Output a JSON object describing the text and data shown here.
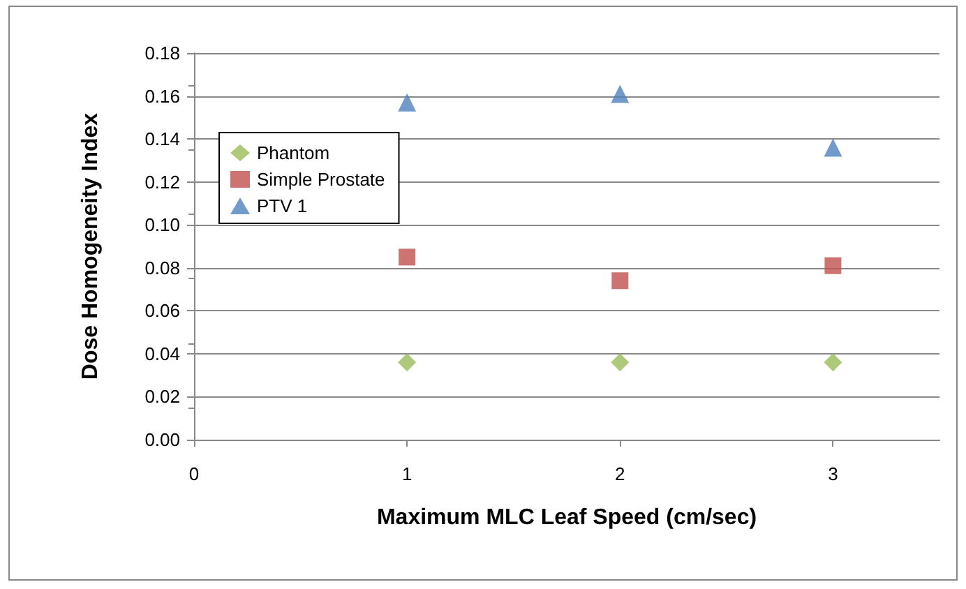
{
  "chart_data": {
    "type": "scatter",
    "xlabel": "Maximum MLC Leaf Speed (cm/sec)",
    "ylabel": "Dose Homogeneity Index",
    "x": [
      1,
      2,
      3
    ],
    "series": [
      {
        "name": "Phantom",
        "color": "#9bbb59",
        "marker": "diamond",
        "values": [
          0.036,
          0.036,
          0.036
        ]
      },
      {
        "name": "Simple Prostate",
        "color": "#c0504d",
        "marker": "square",
        "values": [
          0.085,
          0.074,
          0.081
        ]
      },
      {
        "name": "PTV 1",
        "color": "#4f81bd",
        "marker": "triangle",
        "values": [
          0.157,
          0.161,
          0.136
        ]
      }
    ],
    "xlim": [
      0,
      3.5
    ],
    "xticks": [
      0,
      1,
      2,
      3
    ],
    "ylim": [
      0,
      0.18
    ],
    "yticks": [
      {
        "value": 0,
        "label": "0.00"
      },
      {
        "value": 0.02,
        "label": "0.02"
      },
      {
        "value": 0.04,
        "label": "0.04"
      },
      {
        "value": 0.06,
        "label": "0.06"
      },
      {
        "value": 0.08,
        "label": "0.08"
      },
      {
        "value": 0.1,
        "label": "0.10"
      },
      {
        "value": 0.12,
        "label": "0.12"
      },
      {
        "value": 0.14,
        "label": "0.14"
      },
      {
        "value": 0.16,
        "label": "0.16"
      },
      {
        "value": 0.18,
        "label": "0.18"
      }
    ],
    "grid": "y",
    "legend": "top left"
  }
}
